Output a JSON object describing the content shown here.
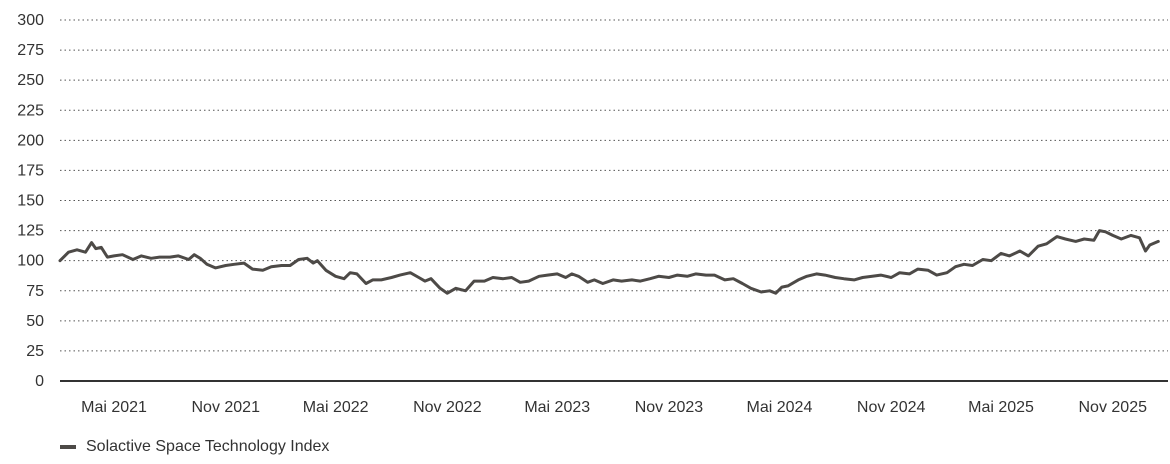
{
  "chart_data": {
    "type": "line",
    "title": "",
    "xlabel": "",
    "ylabel": "",
    "ylim": [
      0,
      300
    ],
    "y_ticks": [
      0,
      25,
      50,
      75,
      100,
      125,
      150,
      175,
      200,
      225,
      250,
      275,
      300
    ],
    "y_tick_labels": [
      "0",
      "25",
      "50",
      "75",
      "100",
      "125",
      "150",
      "175",
      "200",
      "225",
      "250",
      "275",
      "300"
    ],
    "x_range": [
      "2021-02-01",
      "2026-01-31"
    ],
    "x_ticks": [
      {
        "label": "Mai 2021",
        "date": "2021-05-01"
      },
      {
        "label": "Nov 2021",
        "date": "2021-11-01"
      },
      {
        "label": "Mai 2022",
        "date": "2022-05-01"
      },
      {
        "label": "Nov 2022",
        "date": "2022-11-01"
      },
      {
        "label": "Mai 2023",
        "date": "2023-05-01"
      },
      {
        "label": "Nov 2023",
        "date": "2023-11-01"
      },
      {
        "label": "Mai 2024",
        "date": "2024-05-01"
      },
      {
        "label": "Nov 2024",
        "date": "2024-11-01"
      },
      {
        "label": "Mai 2025",
        "date": "2025-05-01"
      },
      {
        "label": "Nov 2025",
        "date": "2025-11-01"
      }
    ],
    "grid": "horizontal-dotted",
    "legend_position": "bottom-left",
    "series": [
      {
        "name": "Solactive Space Technology Index",
        "color": "#4d4a47",
        "points": [
          [
            "2021-02-01",
            100
          ],
          [
            "2021-02-15",
            107
          ],
          [
            "2021-03-01",
            109
          ],
          [
            "2021-03-15",
            107
          ],
          [
            "2021-03-25",
            115
          ],
          [
            "2021-04-01",
            110
          ],
          [
            "2021-04-10",
            111
          ],
          [
            "2021-04-20",
            103
          ],
          [
            "2021-05-01",
            104
          ],
          [
            "2021-05-15",
            105
          ],
          [
            "2021-06-01",
            101
          ],
          [
            "2021-06-15",
            104
          ],
          [
            "2021-07-01",
            102
          ],
          [
            "2021-07-15",
            103
          ],
          [
            "2021-08-01",
            103
          ],
          [
            "2021-08-15",
            104
          ],
          [
            "2021-09-01",
            101
          ],
          [
            "2021-09-10",
            105
          ],
          [
            "2021-09-20",
            102
          ],
          [
            "2021-10-01",
            97
          ],
          [
            "2021-10-15",
            94
          ],
          [
            "2021-11-01",
            96
          ],
          [
            "2021-11-15",
            97
          ],
          [
            "2021-12-01",
            98
          ],
          [
            "2021-12-15",
            93
          ],
          [
            "2022-01-01",
            92
          ],
          [
            "2022-01-15",
            95
          ],
          [
            "2022-02-01",
            96
          ],
          [
            "2022-02-15",
            96
          ],
          [
            "2022-03-01",
            101
          ],
          [
            "2022-03-15",
            102
          ],
          [
            "2022-03-25",
            98
          ],
          [
            "2022-04-01",
            100
          ],
          [
            "2022-04-15",
            92
          ],
          [
            "2022-05-01",
            87
          ],
          [
            "2022-05-15",
            85
          ],
          [
            "2022-05-25",
            90
          ],
          [
            "2022-06-05",
            89
          ],
          [
            "2022-06-20",
            81
          ],
          [
            "2022-07-01",
            84
          ],
          [
            "2022-07-15",
            84
          ],
          [
            "2022-08-01",
            86
          ],
          [
            "2022-08-15",
            88
          ],
          [
            "2022-09-01",
            90
          ],
          [
            "2022-09-15",
            86
          ],
          [
            "2022-09-25",
            83
          ],
          [
            "2022-10-05",
            85
          ],
          [
            "2022-10-20",
            77
          ],
          [
            "2022-11-01",
            73
          ],
          [
            "2022-11-15",
            77
          ],
          [
            "2022-12-01",
            75
          ],
          [
            "2022-12-15",
            83
          ],
          [
            "2023-01-01",
            83
          ],
          [
            "2023-01-15",
            86
          ],
          [
            "2023-02-01",
            85
          ],
          [
            "2023-02-15",
            86
          ],
          [
            "2023-03-01",
            82
          ],
          [
            "2023-03-15",
            83
          ],
          [
            "2023-04-01",
            87
          ],
          [
            "2023-04-15",
            88
          ],
          [
            "2023-05-01",
            89
          ],
          [
            "2023-05-15",
            86
          ],
          [
            "2023-05-25",
            89
          ],
          [
            "2023-06-05",
            87
          ],
          [
            "2023-06-20",
            82
          ],
          [
            "2023-07-01",
            84
          ],
          [
            "2023-07-15",
            81
          ],
          [
            "2023-08-01",
            84
          ],
          [
            "2023-08-15",
            83
          ],
          [
            "2023-09-01",
            84
          ],
          [
            "2023-09-15",
            83
          ],
          [
            "2023-10-01",
            85
          ],
          [
            "2023-10-15",
            87
          ],
          [
            "2023-11-01",
            86
          ],
          [
            "2023-11-15",
            88
          ],
          [
            "2023-12-01",
            87
          ],
          [
            "2023-12-15",
            89
          ],
          [
            "2024-01-01",
            88
          ],
          [
            "2024-01-15",
            88
          ],
          [
            "2024-02-01",
            84
          ],
          [
            "2024-02-15",
            85
          ],
          [
            "2024-03-01",
            81
          ],
          [
            "2024-03-15",
            77
          ],
          [
            "2024-04-01",
            74
          ],
          [
            "2024-04-15",
            75
          ],
          [
            "2024-04-25",
            73
          ],
          [
            "2024-05-05",
            78
          ],
          [
            "2024-05-15",
            79
          ],
          [
            "2024-06-01",
            84
          ],
          [
            "2024-06-15",
            87
          ],
          [
            "2024-07-01",
            89
          ],
          [
            "2024-07-15",
            88
          ],
          [
            "2024-08-01",
            86
          ],
          [
            "2024-08-15",
            85
          ],
          [
            "2024-09-01",
            84
          ],
          [
            "2024-09-15",
            86
          ],
          [
            "2024-10-01",
            87
          ],
          [
            "2024-10-15",
            88
          ],
          [
            "2024-11-01",
            86
          ],
          [
            "2024-11-15",
            90
          ],
          [
            "2024-12-01",
            89
          ],
          [
            "2024-12-15",
            93
          ],
          [
            "2025-01-01",
            92
          ],
          [
            "2025-01-15",
            88
          ],
          [
            "2025-02-01",
            90
          ],
          [
            "2025-02-15",
            95
          ],
          [
            "2025-03-01",
            97
          ],
          [
            "2025-03-15",
            96
          ],
          [
            "2025-04-01",
            101
          ],
          [
            "2025-04-15",
            100
          ],
          [
            "2025-05-01",
            106
          ],
          [
            "2025-05-15",
            104
          ],
          [
            "2025-06-01",
            108
          ],
          [
            "2025-06-15",
            104
          ],
          [
            "2025-07-01",
            112
          ],
          [
            "2025-07-15",
            114
          ],
          [
            "2025-08-01",
            120
          ],
          [
            "2025-08-15",
            118
          ],
          [
            "2025-09-01",
            116
          ],
          [
            "2025-09-15",
            118
          ],
          [
            "2025-10-01",
            117
          ],
          [
            "2025-10-10",
            125
          ],
          [
            "2025-10-20",
            124
          ],
          [
            "2025-11-01",
            121
          ],
          [
            "2025-11-15",
            118
          ],
          [
            "2025-12-01",
            121
          ],
          [
            "2025-12-15",
            119
          ],
          [
            "2025-12-25",
            108
          ],
          [
            "2026-01-01",
            113
          ],
          [
            "2026-01-15",
            116
          ]
        ]
      }
    ]
  }
}
